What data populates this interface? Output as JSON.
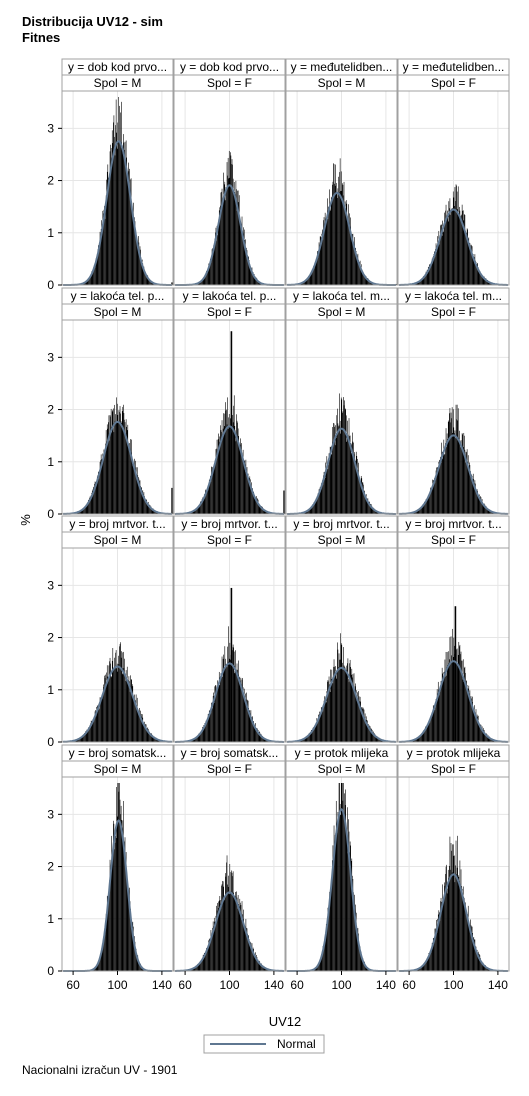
{
  "title": "Distribucija UV12 - sim",
  "subtitle": "Fitnes",
  "footnote": "Nacionalni izračun UV - 1901",
  "legend_label": "Normal",
  "colors": {
    "bars": "#000000",
    "normal_curve": "#5f7791",
    "strip_bg": "#ffffff",
    "frame": "#a0a0a0",
    "grid": "#e6e6e6"
  },
  "chart_data": {
    "type": "histogram-panel",
    "xlabel": "UV12",
    "ylabel": "%",
    "xticks": [
      60,
      100,
      140
    ],
    "yticks": [
      0,
      1,
      2,
      3
    ],
    "xlim": [
      50,
      150
    ],
    "ylim": [
      0,
      3.6
    ],
    "legend": {
      "position": "bottom",
      "entries": [
        "Normal"
      ]
    },
    "grid": true,
    "panels": [
      {
        "row": 0,
        "col": 0,
        "label1": "y = dob kod prvo...",
        "label2": "Spol = M",
        "mean": 101,
        "sd": 10.7,
        "peak": 3.2,
        "spike": null,
        "tail": 0.05
      },
      {
        "row": 0,
        "col": 1,
        "label1": "y = dob kod prvo...",
        "label2": "Spol = F",
        "mean": 100,
        "sd": 10.0,
        "peak": 2.22,
        "spike": null,
        "tail": 0.0
      },
      {
        "row": 0,
        "col": 2,
        "label1": "y = međutelidben...",
        "label2": "Spol = M",
        "mean": 96,
        "sd": 11.5,
        "peak": 2.05,
        "spike": null,
        "tail": 0.02
      },
      {
        "row": 0,
        "col": 3,
        "label1": "y = međutelidben...",
        "label2": "Spol = F",
        "mean": 100,
        "sd": 12.5,
        "peak": 1.68,
        "spike": null,
        "tail": 0.0
      },
      {
        "row": 1,
        "col": 0,
        "label1": "y = lakoća tel. p...",
        "label2": "Spol = M",
        "mean": 100,
        "sd": 12.8,
        "peak": 2.05,
        "spike": null,
        "tail": 0.5
      },
      {
        "row": 1,
        "col": 1,
        "label1": "y = lakoća tel. p...",
        "label2": "Spol = F",
        "mean": 100,
        "sd": 12.5,
        "peak": 1.95,
        "spike": 3.5,
        "tail": 0.45
      },
      {
        "row": 1,
        "col": 2,
        "label1": "y = lakoća tel. m...",
        "label2": "Spol = M",
        "mean": 100,
        "sd": 12.0,
        "peak": 1.9,
        "spike": null,
        "tail": 0.0
      },
      {
        "row": 1,
        "col": 3,
        "label1": "y = lakoća tel. m...",
        "label2": "Spol = F",
        "mean": 100,
        "sd": 13.0,
        "peak": 1.75,
        "spike": null,
        "tail": 0.0
      },
      {
        "row": 2,
        "col": 0,
        "label1": "y = broj mrtvor. t...",
        "label2": "Spol = M",
        "mean": 100,
        "sd": 13.8,
        "peak": 1.68,
        "spike": null,
        "tail": 0.0
      },
      {
        "row": 2,
        "col": 1,
        "label1": "y = broj mrtvor. t...",
        "label2": "Spol = F",
        "mean": 100,
        "sd": 12.5,
        "peak": 1.75,
        "spike": 2.95,
        "tail": 0.0
      },
      {
        "row": 2,
        "col": 2,
        "label1": "y = broj mrtvor. t...",
        "label2": "Spol = M",
        "mean": 100,
        "sd": 13.5,
        "peak": 1.65,
        "spike": null,
        "tail": 0.0
      },
      {
        "row": 2,
        "col": 3,
        "label1": "y = broj mrtvor. t...",
        "label2": "Spol = F",
        "mean": 100,
        "sd": 13.2,
        "peak": 1.8,
        "spike": 2.6,
        "tail": 0.0
      },
      {
        "row": 3,
        "col": 0,
        "label1": "y = broj somatsk...",
        "label2": "Spol = M",
        "mean": 101,
        "sd": 7.6,
        "peak": 3.35,
        "spike": null,
        "tail": 0.0
      },
      {
        "row": 3,
        "col": 1,
        "label1": "y = broj somatsk...",
        "label2": "Spol = F",
        "mean": 100,
        "sd": 12.5,
        "peak": 1.75,
        "spike": null,
        "tail": 0.0
      },
      {
        "row": 3,
        "col": 2,
        "label1": "y = protok mlijeka",
        "label2": "Spol = M",
        "mean": 100,
        "sd": 8.2,
        "peak": 3.6,
        "spike": null,
        "tail": 0.0
      },
      {
        "row": 3,
        "col": 3,
        "label1": "y = protok mlijeka",
        "label2": "Spol = F",
        "mean": 100,
        "sd": 11.5,
        "peak": 2.15,
        "spike": null,
        "tail": 0.0
      }
    ]
  }
}
